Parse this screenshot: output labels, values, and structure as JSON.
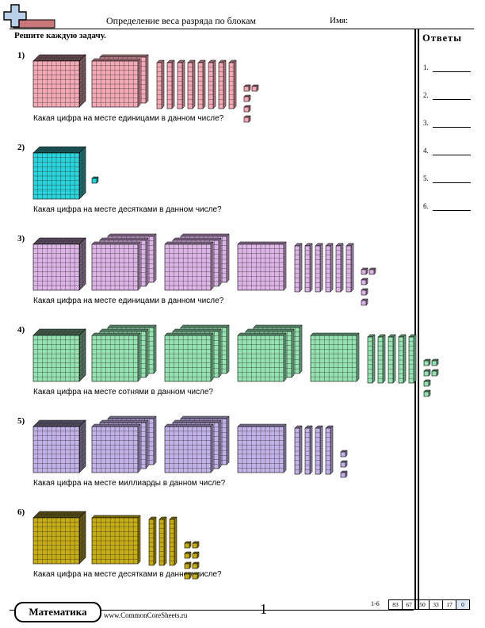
{
  "header": {
    "title": "Определение веса разряда по блокам",
    "name_label": "Имя:"
  },
  "instructions": "Решите каждую задачу.",
  "problems": [
    {
      "number": "1)",
      "question": "Какая цифра на месте единицами в данном числе?",
      "color": "#f4aab6",
      "thousands": 1,
      "hundreds": 2,
      "tens": 8,
      "ones": 5
    },
    {
      "number": "2)",
      "question": "Какая цифра на месте десятками в данном числе?",
      "color": "#2ad4dc",
      "thousands": 1,
      "hundreds": 0,
      "tens": 0,
      "ones": 1
    },
    {
      "number": "3)",
      "question": "Какая цифра на месте единицами в данном числе?",
      "color": "#dcb4e6",
      "thousands": 1,
      "hundreds": 7,
      "tens": 6,
      "ones": 5
    },
    {
      "number": "4)",
      "question": "Какая цифра на месте сотнями в данном числе?",
      "color": "#96e2b0",
      "thousands": 1,
      "hundreds": 10,
      "tens": 5,
      "ones": 6
    },
    {
      "number": "5)",
      "question": "Какая цифра на месте миллиарды в данном числе?",
      "color": "#c3b2e8",
      "thousands": 1,
      "hundreds": 7,
      "tens": 4,
      "ones": 3
    },
    {
      "number": "6)",
      "question": "Какая цифра на месте десятками в данном числе?",
      "color": "#c6ac16",
      "thousands": 1,
      "hundreds": 1,
      "tens": 3,
      "ones": 8
    }
  ],
  "answers": {
    "title": "Ответы",
    "items": [
      "1.",
      "2.",
      "3.",
      "4.",
      "5.",
      "6."
    ]
  },
  "footer": {
    "subject": "Математика",
    "url": "www.CommonCoreSheets.ru",
    "page_number": "1",
    "range": "1-6",
    "scores": [
      "83",
      "67",
      "50",
      "33",
      "17",
      "0"
    ]
  }
}
